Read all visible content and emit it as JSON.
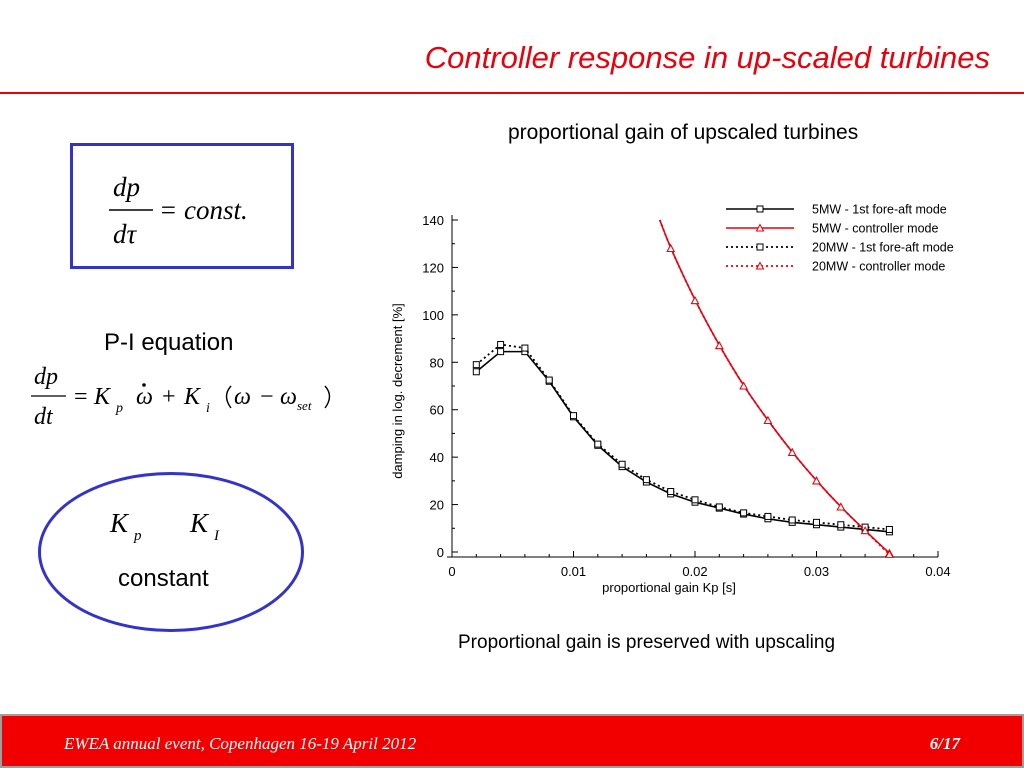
{
  "slide": {
    "title": "Controller response in up-scaled turbines"
  },
  "left_panel": {
    "box_equation": {
      "num": "dp",
      "den": "dτ",
      "rhs": "= const."
    },
    "pi_label": "P-I equation",
    "pi_equation": {
      "num": "dp",
      "den": "dt",
      "eq": "=",
      "K": "K",
      "p": "p",
      "plus": "+",
      "i": "i",
      "omega": "ω",
      "minus": "−",
      "set": "set"
    },
    "ellipse": {
      "kp_K": "K",
      "kp_sub": "p",
      "ki_K": "K",
      "ki_sub": "I",
      "label": "constant"
    }
  },
  "chart_heading": "proportional gain of upscaled turbines",
  "caption": "Proportional gain is preserved with upscaling",
  "footer": {
    "event": "EWEA annual event, Copenhagen 16-19 April 2012",
    "page": "6/17"
  },
  "colors": {
    "accent": "#e8000b",
    "box_border": "#3333cc",
    "series_black": "#000000",
    "series_red": "#e8000b"
  },
  "chart_data": {
    "type": "line",
    "title": "",
    "xlabel": "proportional gain Kp [s]",
    "ylabel": "damping in log. decrement [%]",
    "xlim": [
      0,
      0.04
    ],
    "ylim": [
      0,
      140
    ],
    "xticks": [
      "0",
      "0.01",
      "0.02",
      "0.03",
      "0.04"
    ],
    "yticks": [
      "0",
      "20",
      "40",
      "60",
      "80",
      "100",
      "120",
      "140"
    ],
    "legend_position": "top-right",
    "grid": false,
    "series": [
      {
        "name": "5MW - 1st fore-aft mode",
        "color": "#000000",
        "dash": "solid",
        "marker": "square",
        "x": [
          0.002,
          0.004,
          0.006,
          0.008,
          0.01,
          0.012,
          0.014,
          0.016,
          0.018,
          0.02,
          0.022,
          0.024,
          0.026,
          0.028,
          0.03,
          0.032,
          0.034,
          0.036
        ],
        "y": [
          76,
          84.5,
          84.5,
          72,
          57,
          45,
          36,
          29.5,
          24.5,
          21,
          18.5,
          16,
          14,
          12.5,
          11.5,
          10.5,
          9.5,
          8.5
        ]
      },
      {
        "name": "5MW - controller mode",
        "color": "#e8000b",
        "dash": "solid",
        "marker": "triangle",
        "x": [
          0.0171,
          0.018,
          0.02,
          0.022,
          0.024,
          0.026,
          0.028,
          0.03,
          0.032,
          0.034,
          0.036
        ],
        "y": [
          140,
          128,
          106,
          87,
          70,
          55.5,
          42,
          30,
          19,
          9,
          -0.5
        ]
      },
      {
        "name": "20MW - 1st fore-aft mode",
        "color": "#000000",
        "dash": "dotted",
        "marker": "square",
        "x": [
          0.002,
          0.004,
          0.006,
          0.008,
          0.01,
          0.012,
          0.014,
          0.016,
          0.018,
          0.02,
          0.022,
          0.024,
          0.026,
          0.028,
          0.03,
          0.032,
          0.034,
          0.036
        ],
        "y": [
          79,
          87.5,
          86,
          72.5,
          57.5,
          45.5,
          37,
          30.5,
          25.5,
          22,
          19,
          16.5,
          15,
          13.5,
          12.5,
          11.5,
          10.5,
          9.5
        ]
      },
      {
        "name": "20MW - controller mode",
        "color": "#e8000b",
        "dash": "dotted",
        "marker": "triangle",
        "x": [
          0.0171,
          0.018,
          0.02,
          0.022,
          0.024,
          0.026,
          0.028,
          0.03,
          0.032,
          0.034,
          0.036
        ],
        "y": [
          140,
          128,
          106,
          87,
          70,
          55.5,
          42,
          30,
          19,
          9,
          -1
        ]
      }
    ]
  }
}
